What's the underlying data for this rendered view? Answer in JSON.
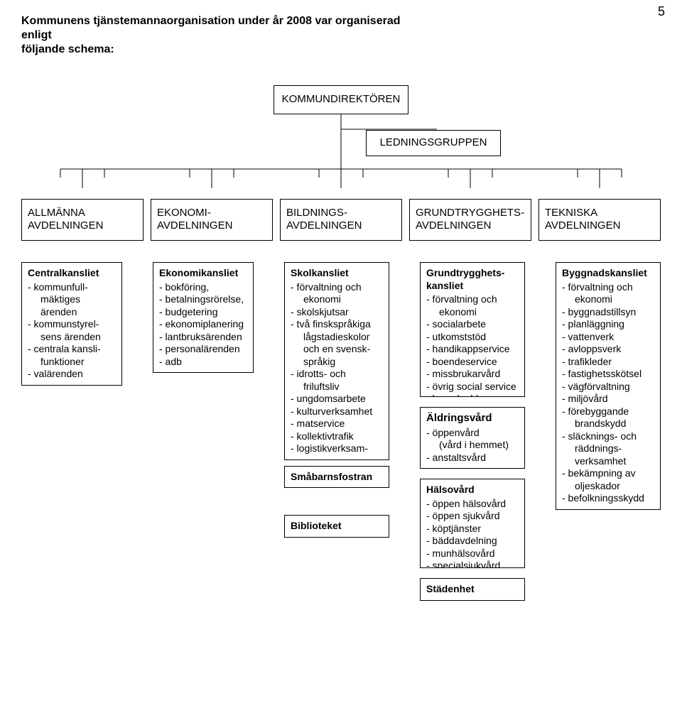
{
  "page_number": "5",
  "intro_line1": "Kommunens tjänstemannaorganisation under år 2008 var organiserad enligt",
  "intro_line2": "följande schema:",
  "top": {
    "kommundirektoren": "KOMMUNDIREKTÖREN",
    "ledningsgruppen": "LEDNINGSGRUPPEN"
  },
  "departments": {
    "d1": "ALLMÄNNA AVDELNINGEN",
    "d2": "EKONOMI-AVDELNINGEN",
    "d3": "BILDNINGS-AVDELNINGEN",
    "d4": "GRUNDTRYGGHETS-AVDELNINGEN",
    "d5": "TEKNISKA AVDELNINGEN"
  },
  "col1": {
    "title": "Centralkansliet",
    "items": [
      "- kommunfull-",
      "  mäktiges ärenden",
      "- kommunstyrel-",
      "  sens ärenden",
      "- centrala kansli-",
      "  funktioner",
      "- valärenden"
    ]
  },
  "col2": {
    "title": "Ekonomikansliet",
    "items": [
      "- bokföring,",
      "- betalningsrörelse,",
      "- budgetering",
      "- ekonomiplanering",
      "- lantbruksärenden",
      "- personalärenden",
      "- adb"
    ]
  },
  "col3": {
    "a_title": "Skolkansliet",
    "a_items": [
      "- förvaltning och",
      "  ekonomi",
      "- skolskjutsar",
      "- två finskspråkiga",
      "  lågstadieskolor",
      "  och en svensk-",
      "  språkig",
      "- idrotts- och",
      "  friluftsliv",
      "- ungdomsarbete",
      "- kulturverksamhet",
      "- matservice",
      "- kollektivtrafik",
      "- logistikverksam-"
    ],
    "b_title": "Småbarnsfostran",
    "c_title": "Biblioteket"
  },
  "col4": {
    "a_title_l1": "Grundtrygghets-",
    "a_title_l2": "kansliet",
    "a_items": [
      "- förvaltning och",
      "  ekonomi",
      "- socialarbete",
      "- utkomststöd",
      "- handikappservice",
      "- boendeservice",
      "- missbrukarvård",
      "- övrig social service",
      "- barnskydd"
    ],
    "b_title": "Äldringsvård",
    "b_items": [
      "- öppenvård",
      "  (vård i hemmet)",
      "- anstaltsvård"
    ],
    "c_title": "Hälsovård",
    "c_items": [
      "- öppen hälsovård",
      "- öppen sjukvård",
      "- köptjänster",
      "- bäddavdelning",
      "- munhälsovård",
      "- specialsjukvård"
    ],
    "d_title": "Städenhet"
  },
  "col5": {
    "title": "Byggnadskansliet",
    "items": [
      "- förvaltning och",
      "  ekonomi",
      "- byggnadstillsyn",
      "- planläggning",
      "- vattenverk",
      "- avloppsverk",
      "- trafikleder",
      "- fastighetsskötsel",
      "- vägförvaltning",
      "- miljövård",
      "- förebyggande",
      "  brandskydd",
      "- släcknings- och",
      "  räddnings-",
      "  verksamhet",
      "- bekämpning av",
      "  oljeskador",
      "- befolkningsskydd"
    ]
  },
  "wires": {
    "stroke": "#000000",
    "stroke_width": 1
  }
}
